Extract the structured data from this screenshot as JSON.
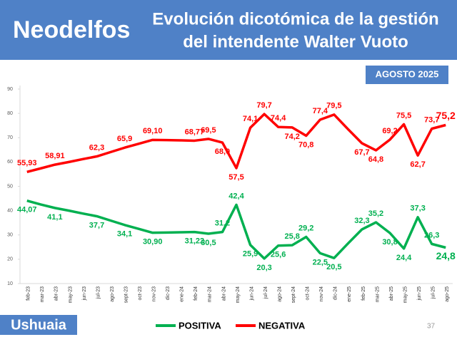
{
  "brand": "Neodelfos",
  "date_badge": "AGOSTO 2025",
  "location": "Ushuaia",
  "page_number": "37",
  "chart_data": {
    "type": "line",
    "title": [
      "Evolución dicotómica de la gestión",
      "del intendente Walter Vuoto"
    ],
    "categories": [
      "feb-23",
      "mar-23",
      "abr-23",
      "may-23",
      "jun-23",
      "jul-23",
      "ago-23",
      "sept-23",
      "oct-23",
      "nov-23",
      "dic-23",
      "ene-24",
      "feb-24",
      "mar-24",
      "abr-24",
      "may-24",
      "jun-24",
      "jul-24",
      "ago-24",
      "sept-24",
      "oct-24",
      "nov-24",
      "dic-24",
      "ene-25",
      "feb-25",
      "mar-25",
      "abr-25",
      "may-25",
      "jun-25",
      "jul-25",
      "ago-25"
    ],
    "ylim": [
      10,
      90
    ],
    "yticks": [
      10,
      20,
      30,
      40,
      50,
      60,
      70,
      80,
      90
    ],
    "legend": "bottom",
    "series": [
      {
        "name": "POSITIVA",
        "color": "#00b050",
        "values": [
          44.07,
          42.5,
          41.1,
          40.0,
          38.8,
          37.7,
          35.9,
          34.1,
          32.5,
          30.9,
          31.0,
          31.1,
          31.22,
          30.5,
          31.2,
          42.4,
          25.9,
          20.3,
          25.6,
          25.8,
          29.2,
          22.5,
          20.5,
          26.5,
          32.3,
          35.2,
          30.8,
          24.4,
          37.3,
          26.3,
          24.8
        ],
        "value_labels": [
          "44,07",
          null,
          "41,1",
          null,
          null,
          "37,7",
          null,
          "34,1",
          null,
          "30,90",
          null,
          null,
          "31,22",
          "30,5",
          "31,2",
          "42,4",
          "25,9",
          "20,3",
          "25,6",
          "25,8",
          "29,2",
          "22,5",
          "20,5",
          null,
          "32,3",
          "35,2",
          "30,8",
          "24,4",
          "37,3",
          "26,3",
          "24,8"
        ]
      },
      {
        "name": "NEGATIVA",
        "color": "#ff0000",
        "values": [
          55.93,
          57.4,
          58.91,
          60.0,
          61.2,
          62.3,
          64.1,
          65.9,
          67.5,
          69.1,
          69.0,
          68.9,
          68.77,
          69.5,
          68.0,
          57.5,
          74.1,
          79.7,
          74.4,
          74.2,
          70.8,
          77.4,
          79.5,
          73.5,
          67.7,
          64.8,
          69.2,
          75.5,
          62.7,
          73.7,
          75.2
        ],
        "value_labels": [
          "55,93",
          null,
          "58,91",
          null,
          null,
          "62,3",
          null,
          "65,9",
          null,
          "69,10",
          null,
          null,
          "68,77",
          "69,5",
          "68,0",
          "57,5",
          "74,1",
          "79,7",
          "74,4",
          "74,2",
          "70,8",
          "77,4",
          "79,5",
          null,
          "67,7",
          "64,8",
          "69,2",
          "75,5",
          "62,7",
          "73,7",
          "75,2"
        ]
      }
    ]
  }
}
